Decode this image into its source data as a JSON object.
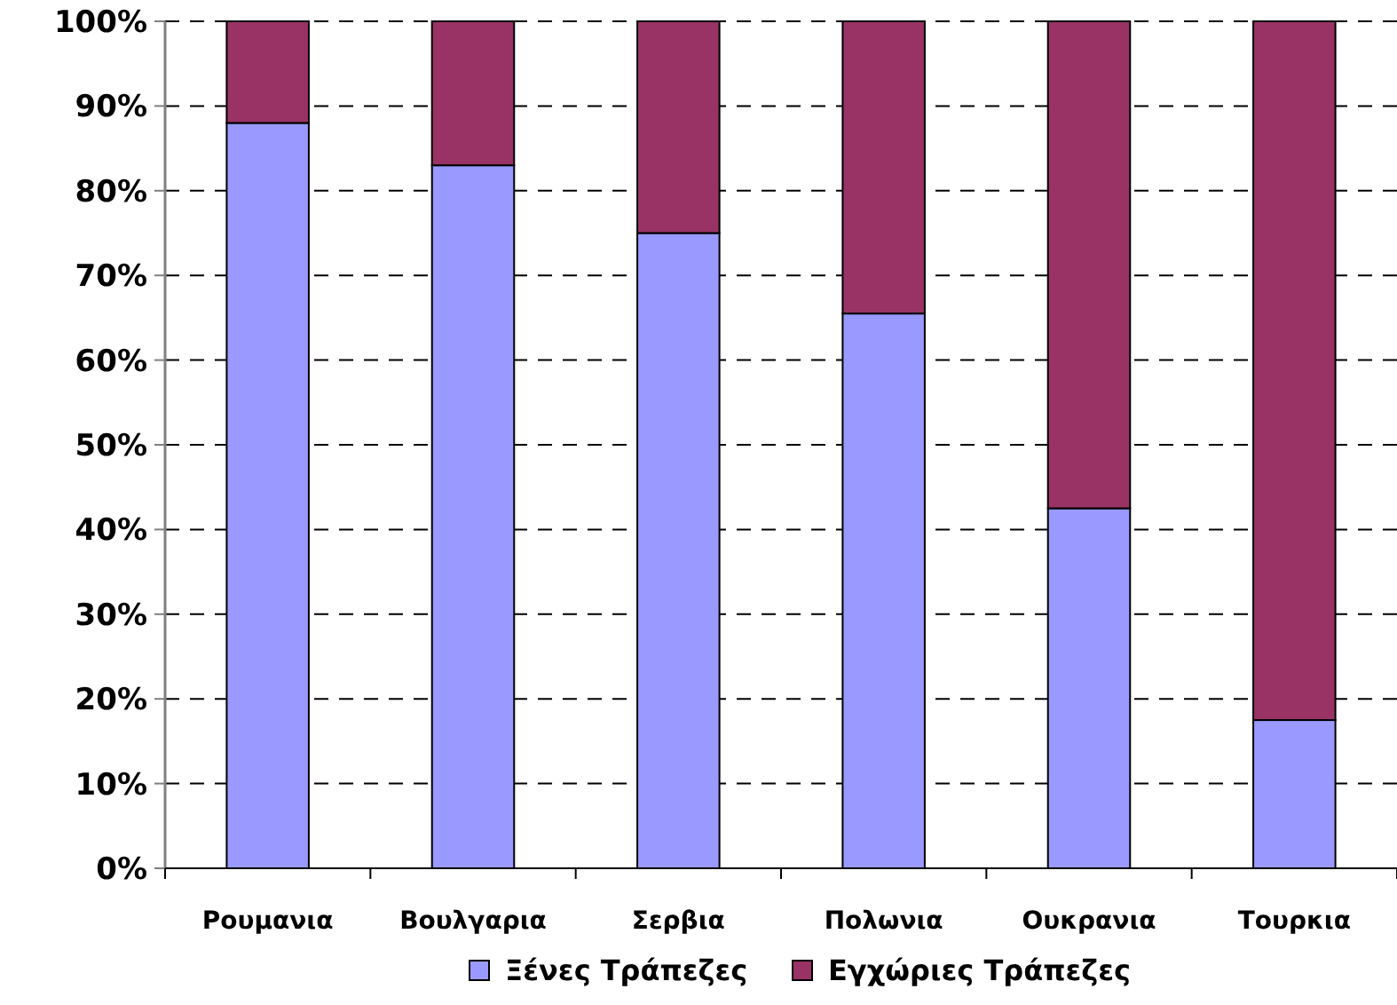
{
  "chart_data": {
    "type": "bar",
    "stacked": true,
    "categories": [
      "Ρουμανια",
      "Βουλγαρια",
      "Σερβια",
      "Πολωνια",
      "Ουκρανια",
      "Τουρκια"
    ],
    "series": [
      {
        "name": "Ξένες Τράπεζες",
        "color": "#9999ff",
        "values": [
          88,
          83,
          75,
          65.5,
          42.5,
          17.5
        ]
      },
      {
        "name": "Εγχώριες Τράπεζες",
        "color": "#993366",
        "values": [
          12,
          17,
          25,
          34.5,
          57.5,
          82.5
        ]
      }
    ],
    "ylim": [
      0,
      100
    ],
    "yticks": [
      {
        "value": 0,
        "label": "0%"
      },
      {
        "value": 10,
        "label": "10%"
      },
      {
        "value": 20,
        "label": "20%"
      },
      {
        "value": 30,
        "label": "30%"
      },
      {
        "value": 40,
        "label": "40%"
      },
      {
        "value": 50,
        "label": "50%"
      },
      {
        "value": 60,
        "label": "60%"
      },
      {
        "value": 70,
        "label": "70%"
      },
      {
        "value": 80,
        "label": "80%"
      },
      {
        "value": 90,
        "label": "90%"
      },
      {
        "value": 100,
        "label": "100%"
      }
    ],
    "grid": "y",
    "legend": "bottom"
  }
}
